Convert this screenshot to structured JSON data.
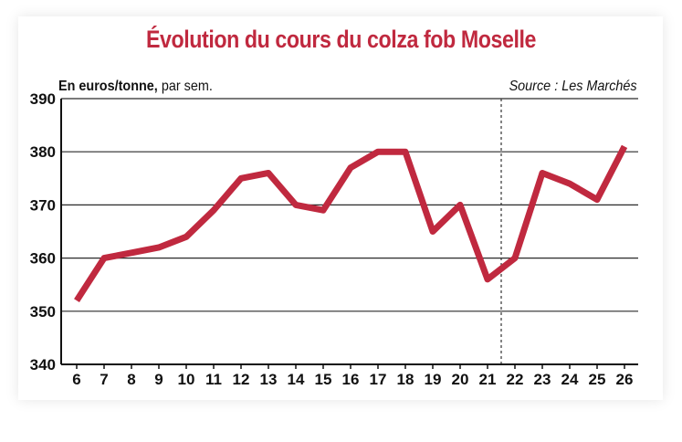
{
  "figure": {
    "title": "Évolution du cours du colza fob Moselle",
    "unit_bold": "En euros/tonne,",
    "unit_rest": " par sem.",
    "source": "Source : Les Marchés"
  },
  "chart_data": {
    "type": "line",
    "title": "Évolution du cours du colza fob Moselle",
    "ylabel": "En euros/tonne, par sem.",
    "xlabel": "",
    "x": [
      6,
      7,
      8,
      9,
      10,
      11,
      12,
      13,
      14,
      15,
      16,
      17,
      18,
      19,
      20,
      21,
      22,
      23,
      24,
      25,
      26
    ],
    "series": [
      {
        "values": [
          352,
          360,
          361,
          362,
          364,
          369,
          375,
          376,
          370,
          369,
          377,
          380,
          380,
          365,
          370,
          356,
          360,
          376,
          374,
          371,
          381
        ]
      }
    ],
    "ylim": [
      340,
      390
    ],
    "yticks": [
      340,
      350,
      360,
      370,
      380,
      390
    ],
    "grid": "horizontal",
    "vertical_marker_after_x": 21,
    "line_color": "#c0293f"
  }
}
